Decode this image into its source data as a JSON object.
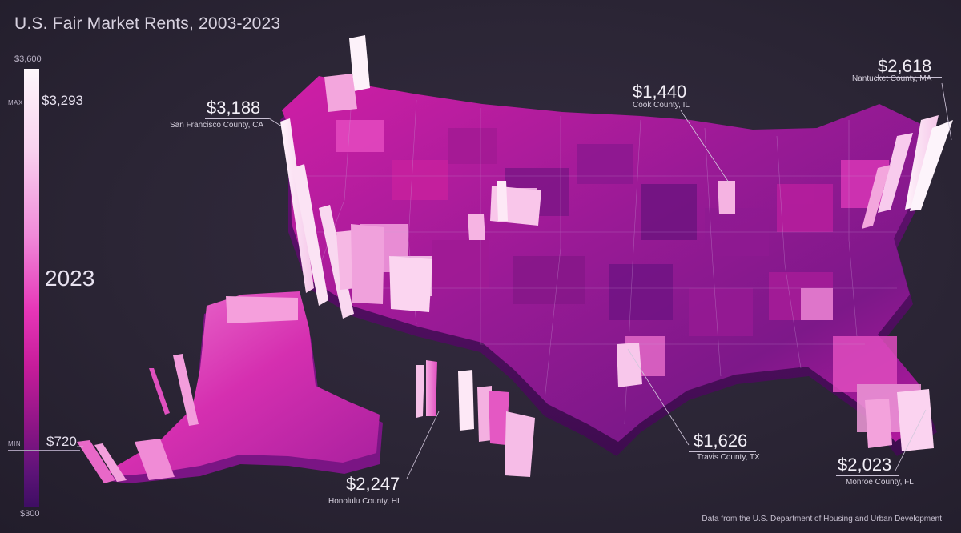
{
  "title": "U.S. Fair Market Rents, 2003-2023",
  "legend": {
    "scale_max_label": "$3,600",
    "scale_min_label": "$300",
    "max_tag": "MAX",
    "max_value": "$3,293",
    "min_tag": "MIN",
    "min_value": "$720",
    "year": "2023",
    "colors": [
      "#fdf7fb",
      "#f08ad9",
      "#e636b8",
      "#8a1585",
      "#3e0e63"
    ]
  },
  "annotations": [
    {
      "value": "$3,188",
      "name": "San Francisco County, CA"
    },
    {
      "value": "$1,440",
      "name": "Cook County, IL"
    },
    {
      "value": "$2,618",
      "name": "Nantucket County, MA"
    },
    {
      "value": "$2,247",
      "name": "Honolulu County, HI"
    },
    {
      "value": "$1,626",
      "name": "Travis County, TX"
    },
    {
      "value": "$2,023",
      "name": "Monroe County, FL"
    }
  ],
  "source": "Data from the U.S. Department of Housing and Urban Development"
}
